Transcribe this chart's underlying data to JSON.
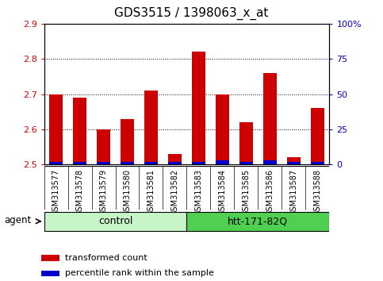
{
  "title": "GDS3515 / 1398063_x_at",
  "samples": [
    "GSM313577",
    "GSM313578",
    "GSM313579",
    "GSM313580",
    "GSM313581",
    "GSM313582",
    "GSM313583",
    "GSM313584",
    "GSM313585",
    "GSM313586",
    "GSM313587",
    "GSM313588"
  ],
  "transformed_count": [
    2.7,
    2.69,
    2.6,
    2.63,
    2.71,
    2.53,
    2.82,
    2.7,
    2.62,
    2.76,
    2.52,
    2.66
  ],
  "percentile_rank": [
    2,
    2,
    2,
    2,
    2,
    2,
    2,
    3,
    2,
    3,
    2,
    2
  ],
  "ylim_left": [
    2.5,
    2.9
  ],
  "ylim_right": [
    0,
    100
  ],
  "yticks_left": [
    2.5,
    2.6,
    2.7,
    2.8,
    2.9
  ],
  "yticks_right": [
    0,
    25,
    50,
    75,
    100
  ],
  "ytick_labels_right": [
    "0",
    "25",
    "50",
    "75",
    "100%"
  ],
  "bar_bottom": 2.5,
  "percentile_scale": 0.4,
  "groups": [
    {
      "label": "control",
      "start": 0,
      "end": 6,
      "color": "#c8f5c8"
    },
    {
      "label": "htt-171-82Q",
      "start": 6,
      "end": 12,
      "color": "#50d050"
    }
  ],
  "agent_label": "agent",
  "legend_items": [
    {
      "color": "#cc0000",
      "label": "transformed count"
    },
    {
      "color": "#0000cc",
      "label": "percentile rank within the sample"
    }
  ],
  "bar_color": "#cc0000",
  "percentile_color": "#0000cc",
  "left_tick_color": "#cc0000",
  "right_tick_color": "#0000bb",
  "title_fontsize": 11,
  "tick_fontsize": 8,
  "sample_fontsize": 7,
  "grid_color": "black",
  "sample_bg_color": "#d8d8d8",
  "plot_bg_color": "#ffffff",
  "bar_width": 0.55
}
